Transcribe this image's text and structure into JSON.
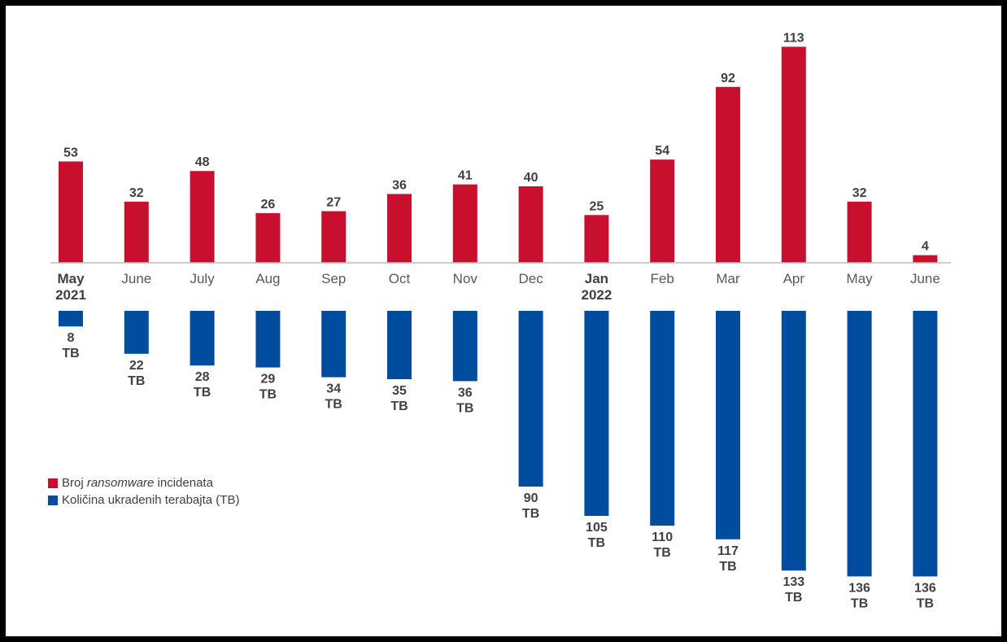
{
  "chart_data": {
    "type": "bar",
    "categories": [
      {
        "month": "May",
        "year": "2021"
      },
      {
        "month": "June",
        "year": ""
      },
      {
        "month": "July",
        "year": ""
      },
      {
        "month": "Aug",
        "year": ""
      },
      {
        "month": "Sep",
        "year": ""
      },
      {
        "month": "Oct",
        "year": ""
      },
      {
        "month": "Nov",
        "year": ""
      },
      {
        "month": "Dec",
        "year": ""
      },
      {
        "month": "Jan",
        "year": "2022"
      },
      {
        "month": "Feb",
        "year": ""
      },
      {
        "month": "Mar",
        "year": ""
      },
      {
        "month": "Apr",
        "year": ""
      },
      {
        "month": "May",
        "year": ""
      },
      {
        "month": "June",
        "year": ""
      }
    ],
    "series": [
      {
        "name_prefix": "Broj ",
        "name_emphasis": "ransomware",
        "name_suffix": " incidenata",
        "color": "#C8102E",
        "direction": "up",
        "values": [
          53,
          32,
          48,
          26,
          27,
          36,
          41,
          40,
          25,
          54,
          92,
          113,
          32,
          4
        ]
      },
      {
        "name": "Količina ukradenih terabajta (TB)",
        "color": "#004C9E",
        "direction": "down",
        "unit": "TB",
        "values": [
          8,
          22,
          28,
          29,
          34,
          35,
          36,
          90,
          105,
          110,
          117,
          133,
          136,
          136
        ]
      }
    ],
    "legend_placement": "bottom-left",
    "grid": false
  }
}
